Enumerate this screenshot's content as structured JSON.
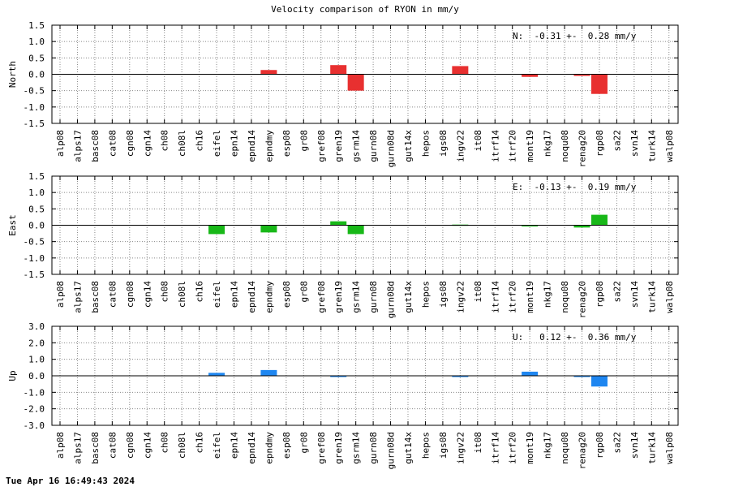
{
  "colors": {
    "north": "#e83030",
    "east": "#18b818",
    "up": "#1e86f0",
    "grid": "#888888",
    "zero_line": "#000000"
  },
  "page": {
    "title": "Velocity comparison of RYON in mm/y",
    "footer_timestamp": "Tue Apr 16 16:49:43 2024"
  },
  "chart_data": [
    {
      "type": "bar",
      "ylabel": "North",
      "annotation": "N:  -0.31 +-  0.28 mm/y",
      "ylim": [
        -1.5,
        1.5
      ],
      "yticks": [
        -1.5,
        -1.0,
        -0.5,
        0.0,
        0.5,
        1.0,
        1.5
      ],
      "ytick_labels": [
        "-1.5",
        "-1.0",
        "-0.5",
        "0.0",
        "0.5",
        "1.0",
        "1.5"
      ],
      "grid": true,
      "categories": [
        "alp08",
        "alps17",
        "basc08",
        "cat08",
        "cgn08",
        "cgn14",
        "ch08",
        "ch08l",
        "ch16",
        "eifel",
        "epn14",
        "epnd14",
        "epndmy",
        "esp08",
        "gr08",
        "gref08",
        "gren19",
        "gsrm14",
        "gurn08",
        "gurn08d",
        "gut14x",
        "hepos",
        "igs08",
        "ingv22",
        "it08",
        "itrf14",
        "itrf20",
        "mont19",
        "nkg17",
        "noqu08",
        "renag20",
        "rgp08",
        "sa22",
        "svn14",
        "turk14",
        "walp08"
      ],
      "values": [
        0,
        0,
        0,
        0,
        0,
        0,
        0,
        0,
        0,
        0,
        0,
        0,
        0.13,
        0,
        0,
        0,
        0.28,
        -0.5,
        0,
        0,
        0,
        0,
        0,
        0.25,
        0,
        0,
        0,
        -0.08,
        0,
        0,
        -0.05,
        -0.6,
        0,
        0,
        0,
        0
      ]
    },
    {
      "type": "bar",
      "ylabel": "East",
      "annotation": "E:  -0.13 +-  0.19 mm/y",
      "ylim": [
        -1.5,
        1.5
      ],
      "yticks": [
        -1.5,
        -1.0,
        -0.5,
        0.0,
        0.5,
        1.0,
        1.5
      ],
      "ytick_labels": [
        "-1.5",
        "-1.0",
        "-0.5",
        "0.0",
        "0.5",
        "1.0",
        "1.5"
      ],
      "grid": true,
      "categories": [
        "alp08",
        "alps17",
        "basc08",
        "cat08",
        "cgn08",
        "cgn14",
        "ch08",
        "ch08l",
        "ch16",
        "eifel",
        "epn14",
        "epnd14",
        "epndmy",
        "esp08",
        "gr08",
        "gref08",
        "gren19",
        "gsrm14",
        "gurn08",
        "gurn08d",
        "gut14x",
        "hepos",
        "igs08",
        "ingv22",
        "it08",
        "itrf14",
        "itrf20",
        "mont19",
        "nkg17",
        "noqu08",
        "renag20",
        "rgp08",
        "sa22",
        "svn14",
        "turk14",
        "walp08"
      ],
      "values": [
        0,
        0,
        0,
        0,
        0,
        0,
        0,
        0,
        0,
        -0.27,
        0,
        0,
        -0.22,
        0,
        0,
        0,
        0.12,
        -0.27,
        0,
        0,
        0,
        0,
        0,
        0.02,
        0,
        0,
        0,
        -0.02,
        0,
        0,
        -0.07,
        0.32,
        0,
        0,
        0,
        0
      ]
    },
    {
      "type": "bar",
      "ylabel": "Up",
      "annotation": "U:   0.12 +-  0.36 mm/y",
      "ylim": [
        -3.0,
        3.0
      ],
      "yticks": [
        -3.0,
        -2.0,
        -1.0,
        0.0,
        1.0,
        2.0,
        3.0
      ],
      "ytick_labels": [
        "-3.0",
        "-2.0",
        "-1.0",
        "0.0",
        "1.0",
        "2.0",
        "3.0"
      ],
      "grid": true,
      "categories": [
        "alp08",
        "alps17",
        "basc08",
        "cat08",
        "cgn08",
        "cgn14",
        "ch08",
        "ch08l",
        "ch16",
        "eifel",
        "epn14",
        "epnd14",
        "epndmy",
        "esp08",
        "gr08",
        "gref08",
        "gren19",
        "gsrm14",
        "gurn08",
        "gurn08d",
        "gut14x",
        "hepos",
        "igs08",
        "ingv22",
        "it08",
        "itrf14",
        "itrf20",
        "mont19",
        "nkg17",
        "noqu08",
        "renag20",
        "rgp08",
        "sa22",
        "svn14",
        "turk14",
        "walp08"
      ],
      "values": [
        0,
        0,
        0,
        0,
        0,
        0,
        0,
        0,
        0,
        0.18,
        0,
        0,
        0.35,
        0,
        0,
        0,
        -0.05,
        0,
        0,
        0,
        0,
        0,
        0,
        -0.05,
        0,
        0,
        0,
        0.25,
        0,
        0,
        -0.05,
        -0.65,
        0,
        0,
        0,
        0
      ]
    }
  ]
}
